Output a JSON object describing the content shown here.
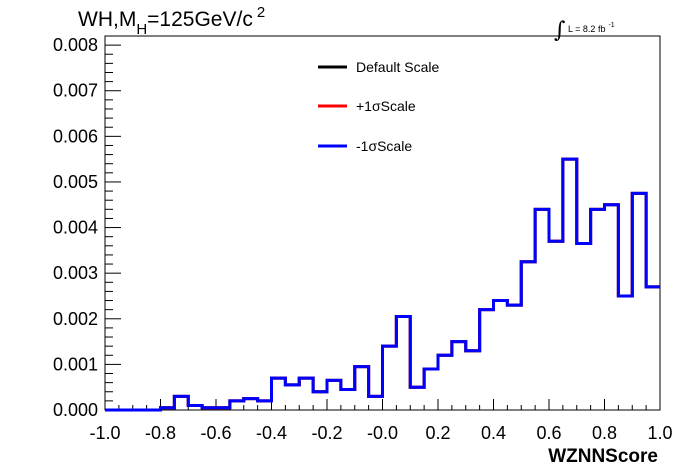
{
  "title": {
    "main": "WH,M",
    "sub": "H",
    "rest": "=125GeV/c",
    "sup": "2"
  },
  "lumi": {
    "symbol": "∫",
    "text": "L = 8.2 fb",
    "sup": "-1"
  },
  "colors": {
    "default": "#000000",
    "plus": "#ff0000",
    "minus": "#0000ff"
  },
  "chart_data": {
    "type": "line",
    "style": "step-histogram",
    "xlabel": "WZNNScore",
    "ylabel": "",
    "xlim": [
      -1.0,
      1.0
    ],
    "ylim": [
      0,
      0.0082
    ],
    "xticks": [
      "-1.0",
      "-0.8",
      "-0.6",
      "-0.4",
      "-0.2",
      "-0.0",
      "0.2",
      "0.4",
      "0.6",
      "0.8",
      "1.0"
    ],
    "yticks": [
      "0.000",
      "0.001",
      "0.002",
      "0.003",
      "0.004",
      "0.005",
      "0.006",
      "0.007",
      "0.008"
    ],
    "bin_edges": [
      -1.0,
      -0.95,
      -0.9,
      -0.85,
      -0.8,
      -0.75,
      -0.7,
      -0.65,
      -0.6,
      -0.55,
      -0.5,
      -0.45,
      -0.4,
      -0.35,
      -0.3,
      -0.25,
      -0.2,
      -0.15,
      -0.1,
      -0.05,
      0.0,
      0.05,
      0.1,
      0.15,
      0.2,
      0.25,
      0.3,
      0.35,
      0.4,
      0.45,
      0.5,
      0.55,
      0.6,
      0.65,
      0.7,
      0.75,
      0.8,
      0.85,
      0.9,
      0.95,
      1.0
    ],
    "series": [
      {
        "name": "Default Scale",
        "values": [
          0.0,
          0.0,
          0.0,
          0.0,
          5e-05,
          0.0003,
          0.0001,
          5e-05,
          5e-05,
          0.0002,
          0.00025,
          0.0002,
          0.0007,
          0.00055,
          0.0007,
          0.0004,
          0.00065,
          0.00045,
          0.00095,
          0.0003,
          0.0014,
          0.00205,
          0.0005,
          0.0009,
          0.0012,
          0.0015,
          0.0013,
          0.0022,
          0.0024,
          0.0023,
          0.00325,
          0.0044,
          0.0037,
          0.0055,
          0.00365,
          0.0044,
          0.0045,
          0.0025,
          0.00475,
          0.0027
        ]
      },
      {
        "name": "+1σScale",
        "values": [
          0.0,
          0.0,
          0.0,
          0.0,
          5e-05,
          0.0003,
          0.0001,
          5e-05,
          5e-05,
          0.0002,
          0.00025,
          0.0002,
          0.0007,
          0.00055,
          0.0007,
          0.0004,
          0.00065,
          0.00045,
          0.00095,
          0.0003,
          0.0014,
          0.00205,
          0.0005,
          0.0009,
          0.0012,
          0.0015,
          0.0013,
          0.0022,
          0.0024,
          0.0023,
          0.00325,
          0.0044,
          0.0037,
          0.0055,
          0.00365,
          0.0044,
          0.0045,
          0.0025,
          0.00475,
          0.0027
        ]
      },
      {
        "name": "-1σScale",
        "values": [
          0.0,
          0.0,
          0.0,
          0.0,
          5e-05,
          0.0003,
          0.0001,
          5e-05,
          5e-05,
          0.0002,
          0.00025,
          0.0002,
          0.0007,
          0.00055,
          0.0007,
          0.0004,
          0.00065,
          0.00045,
          0.00095,
          0.0003,
          0.0014,
          0.00205,
          0.0005,
          0.0009,
          0.0012,
          0.0015,
          0.0013,
          0.0022,
          0.0024,
          0.0023,
          0.00325,
          0.0044,
          0.0037,
          0.0055,
          0.00365,
          0.0044,
          0.0045,
          0.0025,
          0.00475,
          0.0027
        ]
      }
    ],
    "legend": {
      "placement": "top-center",
      "entries": [
        "Default Scale",
        "+1σScale",
        "-1σScale"
      ]
    },
    "grid": false
  }
}
